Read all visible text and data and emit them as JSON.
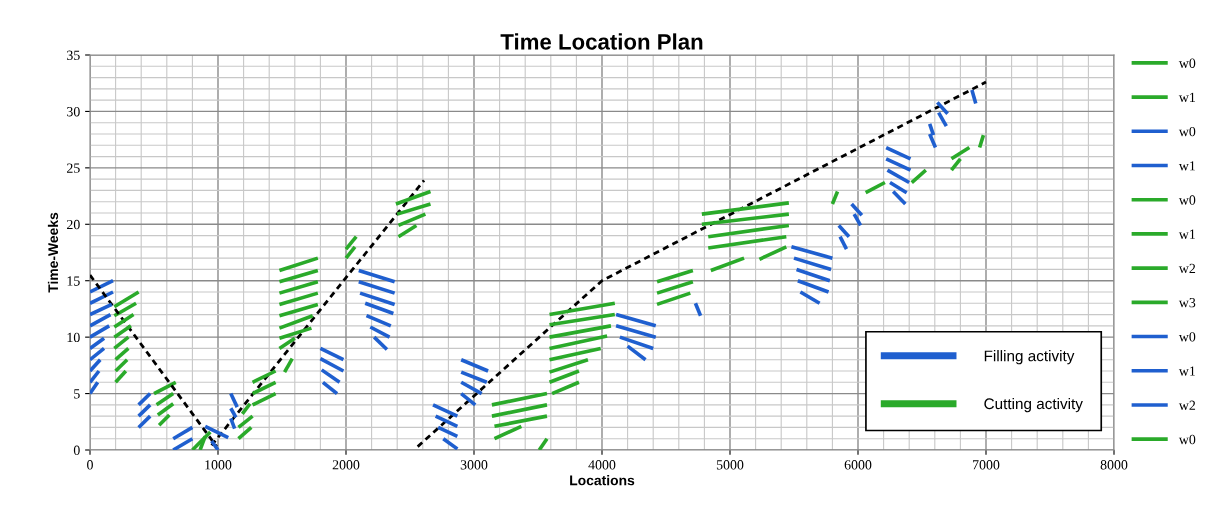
{
  "chart_data": {
    "type": "line",
    "title": "Time Location Plan",
    "xlabel": "Locations",
    "ylabel": "Time-Weeks",
    "xlim": [
      0,
      8000
    ],
    "xticks": [
      0,
      1000,
      2000,
      3000,
      4000,
      5000,
      6000,
      7000,
      8000
    ],
    "ylim": [
      0,
      35
    ],
    "yticks": [
      0,
      5,
      10,
      15,
      20,
      25,
      30,
      35
    ],
    "grid": true,
    "legend": "right",
    "series": [
      {
        "name": "w0",
        "color": "#2aaa2a",
        "x": [
          190,
          380
        ],
        "values": [
          12.7,
          14
        ]
      },
      {
        "name": "w1",
        "color": "#2aaa2a",
        "x": [
          190,
          360
        ],
        "values": [
          11.9,
          13
        ]
      },
      {
        "name": "w0",
        "color": "#1f5fcf",
        "x": [
          0,
          180
        ],
        "values": [
          14,
          15
        ]
      },
      {
        "name": "w1",
        "color": "#1f5fcf",
        "x": [
          0,
          180
        ],
        "values": [
          13,
          14
        ]
      },
      {
        "name": "w0",
        "color": "#2aaa2a",
        "x": [
          500,
          670
        ],
        "values": [
          5,
          6
        ]
      },
      {
        "name": "w1",
        "color": "#2aaa2a",
        "x": [
          520,
          650
        ],
        "values": [
          4,
          5
        ]
      },
      {
        "name": "w2",
        "color": "#2aaa2a",
        "x": [
          530,
          650
        ],
        "values": [
          3.1,
          4.1
        ]
      },
      {
        "name": "w3",
        "color": "#2aaa2a",
        "x": [
          540,
          620
        ],
        "values": [
          2.2,
          3.1
        ]
      },
      {
        "name": "w0",
        "color": "#1f5fcf",
        "x": [
          380,
          470
        ],
        "values": [
          4,
          5
        ]
      },
      {
        "name": "w1",
        "color": "#1f5fcf",
        "x": [
          380,
          470
        ],
        "values": [
          3,
          4
        ]
      },
      {
        "name": "w2",
        "color": "#1f5fcf",
        "x": [
          380,
          470
        ],
        "values": [
          2,
          3
        ]
      },
      {
        "name": "w0",
        "color": "#2aaa2a",
        "x": [
          800,
          940
        ],
        "values": [
          0,
          1.6
        ]
      },
      {
        "color": "#000000",
        "line_style": "dashed",
        "x": [
          0,
          990
        ],
        "values": [
          15.5,
          0.3
        ]
      },
      {
        "color": "#000000",
        "line_style": "dashed",
        "x": [
          950,
          2610
        ],
        "values": [
          0.4,
          23.9
        ]
      },
      {
        "color": "#000000",
        "line_style": "dashed",
        "x": [
          2560,
          4000,
          7000
        ],
        "values": [
          0.3,
          15,
          32.6
        ]
      },
      {
        "name": "Filling activity",
        "color": "#1f5fcf",
        "x": [
          0,
          170
        ],
        "values": [
          12,
          12.9
        ]
      },
      {
        "name": "Cutting activity",
        "color": "#2aaa2a",
        "x": [
          190,
          340
        ],
        "values": [
          10.9,
          12
        ]
      },
      {
        "color": "#1f5fcf",
        "x": [
          0,
          160
        ],
        "values": [
          11,
          12
        ]
      },
      {
        "color": "#1f5fcf",
        "x": [
          0,
          150
        ],
        "values": [
          10,
          11
        ]
      },
      {
        "color": "#1f5fcf",
        "x": [
          0,
          110
        ],
        "values": [
          9,
          9.9
        ]
      },
      {
        "color": "#1f5fcf",
        "x": [
          0,
          110
        ],
        "values": [
          8,
          9
        ]
      },
      {
        "color": "#1f5fcf",
        "x": [
          0,
          80
        ],
        "values": [
          7,
          8
        ]
      },
      {
        "color": "#1f5fcf",
        "x": [
          0,
          70
        ],
        "values": [
          6,
          7
        ]
      },
      {
        "color": "#1f5fcf",
        "x": [
          0,
          60
        ],
        "values": [
          5,
          6
        ]
      },
      {
        "color": "#1f5fcf",
        "x": [
          650,
          800
        ],
        "values": [
          0,
          1
        ]
      },
      {
        "color": "#1f5fcf",
        "x": [
          650,
          800
        ],
        "values": [
          1,
          2
        ]
      },
      {
        "color": "#1f5fcf",
        "x": [
          900,
          1080
        ],
        "values": [
          2.1,
          1.1
        ]
      },
      {
        "color": "#1f5fcf",
        "x": [
          950,
          1000
        ],
        "values": [
          0.8,
          0
        ]
      },
      {
        "color": "#1f5fcf",
        "x": [
          1100,
          1150
        ],
        "values": [
          5,
          3.8
        ]
      },
      {
        "color": "#1f5fcf",
        "x": [
          1100,
          1140
        ],
        "values": [
          3.7,
          2.9
        ]
      },
      {
        "color": "#1f5fcf",
        "x": [
          1100,
          1130
        ],
        "values": [
          2.8,
          1.9
        ]
      },
      {
        "color": "#1f5fcf",
        "x": [
          1800,
          1980
        ],
        "values": [
          9,
          8
        ]
      },
      {
        "color": "#1f5fcf",
        "x": [
          1800,
          1980
        ],
        "values": [
          8.1,
          7
        ]
      },
      {
        "color": "#1f5fcf",
        "x": [
          1810,
          1950
        ],
        "values": [
          7.1,
          6
        ]
      },
      {
        "color": "#1f5fcf",
        "x": [
          1820,
          1930
        ],
        "values": [
          6,
          5
        ]
      },
      {
        "color": "#1f5fcf",
        "x": [
          2100,
          2380
        ],
        "values": [
          15.9,
          14.9
        ]
      },
      {
        "color": "#1f5fcf",
        "x": [
          2100,
          2380
        ],
        "values": [
          14.9,
          13.9
        ]
      },
      {
        "color": "#1f5fcf",
        "x": [
          2110,
          2380
        ],
        "values": [
          13.9,
          12.9
        ]
      },
      {
        "color": "#1f5fcf",
        "x": [
          2150,
          2370
        ],
        "values": [
          13,
          12.1
        ]
      },
      {
        "color": "#1f5fcf",
        "x": [
          2160,
          2350
        ],
        "values": [
          11.9,
          11
        ]
      },
      {
        "color": "#1f5fcf",
        "x": [
          2190,
          2340
        ],
        "values": [
          10.9,
          10
        ]
      },
      {
        "color": "#1f5fcf",
        "x": [
          2220,
          2320
        ],
        "values": [
          10,
          8.9
        ]
      },
      {
        "color": "#1f5fcf",
        "x": [
          2680,
          2870
        ],
        "values": [
          4,
          3
        ]
      },
      {
        "color": "#1f5fcf",
        "x": [
          2700,
          2870
        ],
        "values": [
          3,
          2.1
        ]
      },
      {
        "color": "#1f5fcf",
        "x": [
          2720,
          2870
        ],
        "values": [
          2,
          1.2
        ]
      },
      {
        "color": "#1f5fcf",
        "x": [
          2760,
          2870
        ],
        "values": [
          1,
          0.1
        ]
      },
      {
        "color": "#1f5fcf",
        "x": [
          2900,
          3110
        ],
        "values": [
          8,
          7
        ]
      },
      {
        "color": "#1f5fcf",
        "x": [
          2900,
          3100
        ],
        "values": [
          6.9,
          6
        ]
      },
      {
        "color": "#1f5fcf",
        "x": [
          2900,
          3060
        ],
        "values": [
          6,
          5
        ]
      },
      {
        "color": "#1f5fcf",
        "x": [
          2900,
          3010
        ],
        "values": [
          5,
          4
        ]
      },
      {
        "color": "#1f5fcf",
        "x": [
          4110,
          4420
        ],
        "values": [
          12,
          11
        ]
      },
      {
        "color": "#1f5fcf",
        "x": [
          4110,
          4420
        ],
        "values": [
          11,
          10
        ]
      },
      {
        "color": "#1f5fcf",
        "x": [
          4140,
          4400
        ],
        "values": [
          10,
          9
        ]
      },
      {
        "color": "#1f5fcf",
        "x": [
          4200,
          4340
        ],
        "values": [
          9.2,
          8
        ]
      },
      {
        "color": "#1f5fcf",
        "x": [
          4730,
          4770
        ],
        "values": [
          13,
          11.9
        ]
      },
      {
        "color": "#1f5fcf",
        "x": [
          5480,
          5800
        ],
        "values": [
          18,
          17
        ]
      },
      {
        "color": "#1f5fcf",
        "x": [
          5500,
          5790
        ],
        "values": [
          17,
          16
        ]
      },
      {
        "color": "#1f5fcf",
        "x": [
          5520,
          5780
        ],
        "values": [
          16,
          15
        ]
      },
      {
        "color": "#1f5fcf",
        "x": [
          5530,
          5770
        ],
        "values": [
          15,
          14
        ]
      },
      {
        "color": "#1f5fcf",
        "x": [
          5550,
          5700
        ],
        "values": [
          14,
          13
        ]
      },
      {
        "color": "#1f5fcf",
        "x": [
          5850,
          5930
        ],
        "values": [
          19.9,
          18.9
        ]
      },
      {
        "color": "#1f5fcf",
        "x": [
          5860,
          5910
        ],
        "values": [
          18.9,
          17.8
        ]
      },
      {
        "color": "#1f5fcf",
        "x": [
          5950,
          6030
        ],
        "values": [
          21.8,
          20.8
        ]
      },
      {
        "color": "#1f5fcf",
        "x": [
          5970,
          6020
        ],
        "values": [
          20.9,
          19.9
        ]
      },
      {
        "color": "#1f5fcf",
        "x": [
          6220,
          6410
        ],
        "values": [
          26.8,
          25.8
        ]
      },
      {
        "color": "#1f5fcf",
        "x": [
          6220,
          6410
        ],
        "values": [
          25.8,
          24.8
        ]
      },
      {
        "color": "#1f5fcf",
        "x": [
          6230,
          6400
        ],
        "values": [
          24.8,
          23.7
        ]
      },
      {
        "color": "#1f5fcf",
        "x": [
          6250,
          6380
        ],
        "values": [
          23.7,
          22.8
        ]
      },
      {
        "color": "#1f5fcf",
        "x": [
          6275,
          6370
        ],
        "values": [
          22.9,
          21.8
        ]
      },
      {
        "color": "#1f5fcf",
        "x": [
          6560,
          6590
        ],
        "values": [
          28.9,
          27.9
        ]
      },
      {
        "color": "#1f5fcf",
        "x": [
          6560,
          6605
        ],
        "values": [
          28,
          26.8
        ]
      },
      {
        "color": "#1f5fcf",
        "x": [
          6620,
          6700
        ],
        "values": [
          30.8,
          29.8
        ]
      },
      {
        "color": "#1f5fcf",
        "x": [
          6630,
          6690
        ],
        "values": [
          29.9,
          28.7
        ]
      },
      {
        "color": "#1f5fcf",
        "x": [
          6890,
          6920
        ],
        "values": [
          31.9,
          30.7
        ]
      },
      {
        "color": "#2aaa2a",
        "x": [
          190,
          320
        ],
        "values": [
          10,
          11
        ]
      },
      {
        "color": "#2aaa2a",
        "x": [
          190,
          300
        ],
        "values": [
          9,
          10
        ]
      },
      {
        "color": "#2aaa2a",
        "x": [
          200,
          300
        ],
        "values": [
          8,
          9
        ]
      },
      {
        "color": "#2aaa2a",
        "x": [
          200,
          290
        ],
        "values": [
          7,
          8
        ]
      },
      {
        "color": "#2aaa2a",
        "x": [
          200,
          280
        ],
        "values": [
          6,
          7
        ]
      },
      {
        "color": "#2aaa2a",
        "x": [
          860,
          900
        ],
        "values": [
          0,
          1.2
        ]
      },
      {
        "color": "#2aaa2a",
        "x": [
          1160,
          1260
        ],
        "values": [
          1,
          2
        ]
      },
      {
        "color": "#2aaa2a",
        "x": [
          1160,
          1270
        ],
        "values": [
          2,
          3
        ]
      },
      {
        "color": "#2aaa2a",
        "x": [
          1190,
          1250
        ],
        "values": [
          3.2,
          4.1
        ]
      },
      {
        "color": "#2aaa2a",
        "x": [
          1270,
          1450
        ],
        "values": [
          4,
          5
        ]
      },
      {
        "color": "#2aaa2a",
        "x": [
          1270,
          1450
        ],
        "values": [
          5,
          6
        ]
      },
      {
        "color": "#2aaa2a",
        "x": [
          1270,
          1450
        ],
        "values": [
          6,
          7
        ]
      },
      {
        "color": "#2aaa2a",
        "x": [
          1480,
          1780
        ],
        "values": [
          15.9,
          17
        ]
      },
      {
        "color": "#2aaa2a",
        "x": [
          1480,
          1780
        ],
        "values": [
          14.9,
          15.9
        ]
      },
      {
        "color": "#2aaa2a",
        "x": [
          1480,
          1780
        ],
        "values": [
          13.9,
          14.9
        ]
      },
      {
        "color": "#2aaa2a",
        "x": [
          1480,
          1780
        ],
        "values": [
          12.9,
          13.9
        ]
      },
      {
        "color": "#2aaa2a",
        "x": [
          1480,
          1780
        ],
        "values": [
          11.9,
          12.9
        ]
      },
      {
        "color": "#2aaa2a",
        "x": [
          1480,
          1740
        ],
        "values": [
          10.8,
          11.9
        ]
      },
      {
        "color": "#2aaa2a",
        "x": [
          1480,
          1730
        ],
        "values": [
          9.9,
          10.8
        ]
      },
      {
        "color": "#2aaa2a",
        "x": [
          1480,
          1600
        ],
        "values": [
          9,
          9.9
        ]
      },
      {
        "color": "#2aaa2a",
        "x": [
          1520,
          1580
        ],
        "values": [
          6.9,
          8.1
        ]
      },
      {
        "color": "#2aaa2a",
        "x": [
          2000,
          2080
        ],
        "values": [
          17.8,
          18.9
        ]
      },
      {
        "color": "#2aaa2a",
        "x": [
          2000,
          2070
        ],
        "values": [
          17,
          18
        ]
      },
      {
        "color": "#2aaa2a",
        "x": [
          2390,
          2660
        ],
        "values": [
          21.8,
          22.9
        ]
      },
      {
        "color": "#2aaa2a",
        "x": [
          2400,
          2660
        ],
        "values": [
          20.9,
          21.8
        ]
      },
      {
        "color": "#2aaa2a",
        "x": [
          2410,
          2620
        ],
        "values": [
          19.9,
          20.9
        ]
      },
      {
        "color": "#2aaa2a",
        "x": [
          2410,
          2550
        ],
        "values": [
          18.9,
          19.9
        ]
      },
      {
        "color": "#2aaa2a",
        "x": [
          3140,
          3570
        ],
        "values": [
          4,
          5
        ]
      },
      {
        "color": "#2aaa2a",
        "x": [
          3140,
          3570
        ],
        "values": [
          3,
          4
        ]
      },
      {
        "color": "#2aaa2a",
        "x": [
          3160,
          3570
        ],
        "values": [
          2.1,
          3
        ]
      },
      {
        "color": "#2aaa2a",
        "x": [
          3160,
          3370
        ],
        "values": [
          1,
          2.1
        ]
      },
      {
        "color": "#2aaa2a",
        "x": [
          3510,
          3570
        ],
        "values": [
          0,
          1
        ]
      },
      {
        "color": "#2aaa2a",
        "x": [
          3590,
          4100
        ],
        "values": [
          12,
          13
        ]
      },
      {
        "color": "#2aaa2a",
        "x": [
          3590,
          4100
        ],
        "values": [
          11.1,
          12
        ]
      },
      {
        "color": "#2aaa2a",
        "x": [
          3590,
          4070
        ],
        "values": [
          10,
          11
        ]
      },
      {
        "color": "#2aaa2a",
        "x": [
          3590,
          4040
        ],
        "values": [
          9,
          10.1
        ]
      },
      {
        "color": "#2aaa2a",
        "x": [
          3590,
          3990
        ],
        "values": [
          8,
          9
        ]
      },
      {
        "color": "#2aaa2a",
        "x": [
          3590,
          3890
        ],
        "values": [
          6.9,
          8
        ]
      },
      {
        "color": "#2aaa2a",
        "x": [
          3590,
          3820
        ],
        "values": [
          6,
          7
        ]
      },
      {
        "color": "#2aaa2a",
        "x": [
          3610,
          3820
        ],
        "values": [
          5,
          6
        ]
      },
      {
        "color": "#2aaa2a",
        "x": [
          4430,
          4710
        ],
        "values": [
          14.9,
          15.9
        ]
      },
      {
        "color": "#2aaa2a",
        "x": [
          4430,
          4710
        ],
        "values": [
          13.9,
          14.9
        ]
      },
      {
        "color": "#2aaa2a",
        "x": [
          4430,
          4690
        ],
        "values": [
          12.9,
          13.9
        ]
      },
      {
        "color": "#2aaa2a",
        "x": [
          4780,
          5460
        ],
        "values": [
          20.9,
          21.9
        ]
      },
      {
        "color": "#2aaa2a",
        "x": [
          4780,
          5460
        ],
        "values": [
          20,
          20.9
        ]
      },
      {
        "color": "#2aaa2a",
        "x": [
          4830,
          5460
        ],
        "values": [
          18.9,
          19.9
        ]
      },
      {
        "color": "#2aaa2a",
        "x": [
          4830,
          5440
        ],
        "values": [
          17.9,
          18.9
        ]
      },
      {
        "color": "#2aaa2a",
        "x": [
          4850,
          5110
        ],
        "values": [
          15.9,
          17
        ]
      },
      {
        "color": "#2aaa2a",
        "x": [
          5230,
          5440
        ],
        "values": [
          16.9,
          18
        ]
      },
      {
        "color": "#2aaa2a",
        "x": [
          5800,
          5840
        ],
        "values": [
          21.8,
          22.9
        ]
      },
      {
        "color": "#2aaa2a",
        "x": [
          6060,
          6210
        ],
        "values": [
          22.8,
          23.7
        ]
      },
      {
        "color": "#2aaa2a",
        "x": [
          6420,
          6530
        ],
        "values": [
          23.7,
          24.8
        ]
      },
      {
        "color": "#2aaa2a",
        "x": [
          6730,
          6870
        ],
        "values": [
          25.8,
          26.8
        ]
      },
      {
        "color": "#2aaa2a",
        "x": [
          6730,
          6800
        ],
        "values": [
          24.8,
          25.8
        ]
      },
      {
        "color": "#2aaa2a",
        "x": [
          6950,
          6980
        ],
        "values": [
          26.8,
          27.9
        ]
      }
    ]
  }
}
